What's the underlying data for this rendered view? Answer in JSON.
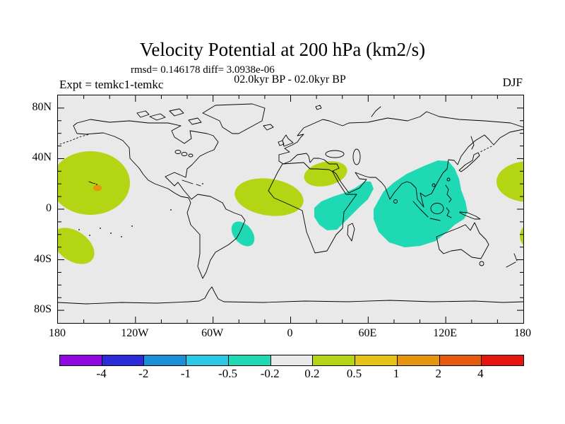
{
  "header": {
    "title": "Velocity Potential at 200 hPa (km2/s)",
    "stats_line": "rmsd= 0.146178 diff= 3.0938e-06",
    "comparison_line": "02.0kyr BP - 02.0kyr BP",
    "experiment_label": "Expt = temkc1-temkc",
    "season_label": "DJF"
  },
  "map": {
    "background_color": "#E9E9E9",
    "coastline_color": "#000000",
    "frame_color": "#000000"
  },
  "axes": {
    "lat_ticks": [
      {
        "label": "80N",
        "lat": 80
      },
      {
        "label": "40N",
        "lat": 40
      },
      {
        "label": "0",
        "lat": 0
      },
      {
        "label": "40S",
        "lat": -40
      },
      {
        "label": "80S",
        "lat": -80
      }
    ],
    "lon_ticks": [
      {
        "label": "180",
        "lon": -180
      },
      {
        "label": "120W",
        "lon": -120
      },
      {
        "label": "60W",
        "lon": -60
      },
      {
        "label": "0",
        "lon": 0
      },
      {
        "label": "60E",
        "lon": 60
      },
      {
        "label": "120E",
        "lon": 120
      },
      {
        "label": "180",
        "lon": 180
      }
    ],
    "lon_minor_step_deg": 20,
    "lat_minor_step_deg": 10
  },
  "colorbar": {
    "colors": [
      "#9109E0",
      "#2B2BD9",
      "#1C8FD9",
      "#2BC9E6",
      "#1ED9B4",
      "#E9E9E9",
      "#B4D513",
      "#E6C214",
      "#E6950F",
      "#E55A0C",
      "#E61410"
    ],
    "boundary_labels": [
      "-4",
      "-2",
      "-1",
      "-0.5",
      "-0.2",
      "0.2",
      "0.5",
      "1",
      "2",
      "4"
    ]
  },
  "chart_data": {
    "type": "heatmap",
    "title": "Velocity Potential at 200 hPa (km2/s)",
    "units": "km2/s",
    "projection": "equirectangular",
    "lon_range": [
      -180,
      180
    ],
    "lat_range": [
      -90,
      90
    ],
    "season": "DJF",
    "experiment": "temkc1-temkc",
    "comparison": "02.0kyr BP - 02.0kyr BP",
    "rmsd": 0.146178,
    "diff": 3.0938e-06,
    "contour_levels": [
      -4,
      -2,
      -1,
      -0.5,
      -0.2,
      0.2,
      0.5,
      1,
      2,
      4
    ],
    "regions": [
      {
        "name": "central-north-pacific",
        "band": "0.2 to 0.5",
        "color": "#B4D513",
        "lon_range": [
          -180,
          -124
        ],
        "lat_range": [
          -3,
          43
        ]
      },
      {
        "name": "spot-south-of-hawaii",
        "band": "1 to 2",
        "color": "#E6950F",
        "lon_range": [
          -152,
          -146
        ],
        "lat_range": [
          14,
          18
        ]
      },
      {
        "name": "south-central-pacific",
        "band": "0.2 to 0.5",
        "color": "#B4D513",
        "lon_range": [
          -180,
          -150
        ],
        "lat_range": [
          -42,
          -15
        ]
      },
      {
        "name": "tropical-atlantic-west-africa",
        "band": "0.2 to 0.5",
        "color": "#B4D513",
        "lon_range": [
          -42,
          10
        ],
        "lat_range": [
          -5,
          24
        ]
      },
      {
        "name": "northeast-africa-east-mediterranean",
        "band": "0.2 to 0.5",
        "color": "#B4D513",
        "lon_range": [
          12,
          43
        ],
        "lat_range": [
          18,
          37
        ]
      },
      {
        "name": "northwest-pacific-wrap-at-dateline",
        "band": "0.2 to 0.5",
        "color": "#B4D513",
        "lon_range": [
          168,
          180
        ],
        "lat_range": [
          6,
          38
        ]
      },
      {
        "name": "southwest-pacific-wrap-at-dateline",
        "band": "0.2 to 0.5",
        "color": "#B4D513",
        "lon_range": [
          177,
          180
        ],
        "lat_range": [
          -28,
          -13
        ]
      },
      {
        "name": "east-africa-horn-west-arabian-sea",
        "band": "-0.5 to -0.2",
        "color": "#1ED9B4",
        "lon_range": [
          18,
          64
        ],
        "lat_range": [
          -17,
          24
        ]
      },
      {
        "name": "india-southeast-asia-indian-ocean",
        "band": "-0.5 to -0.2",
        "color": "#1ED9B4",
        "lon_range": [
          64,
          137
        ],
        "lat_range": [
          -31,
          40
        ]
      },
      {
        "name": "south-atlantic-off-brazil",
        "band": "-0.5 to -0.2",
        "color": "#1ED9B4",
        "lon_range": [
          -41,
          -28
        ],
        "lat_range": [
          -26,
          -13
        ]
      }
    ]
  }
}
